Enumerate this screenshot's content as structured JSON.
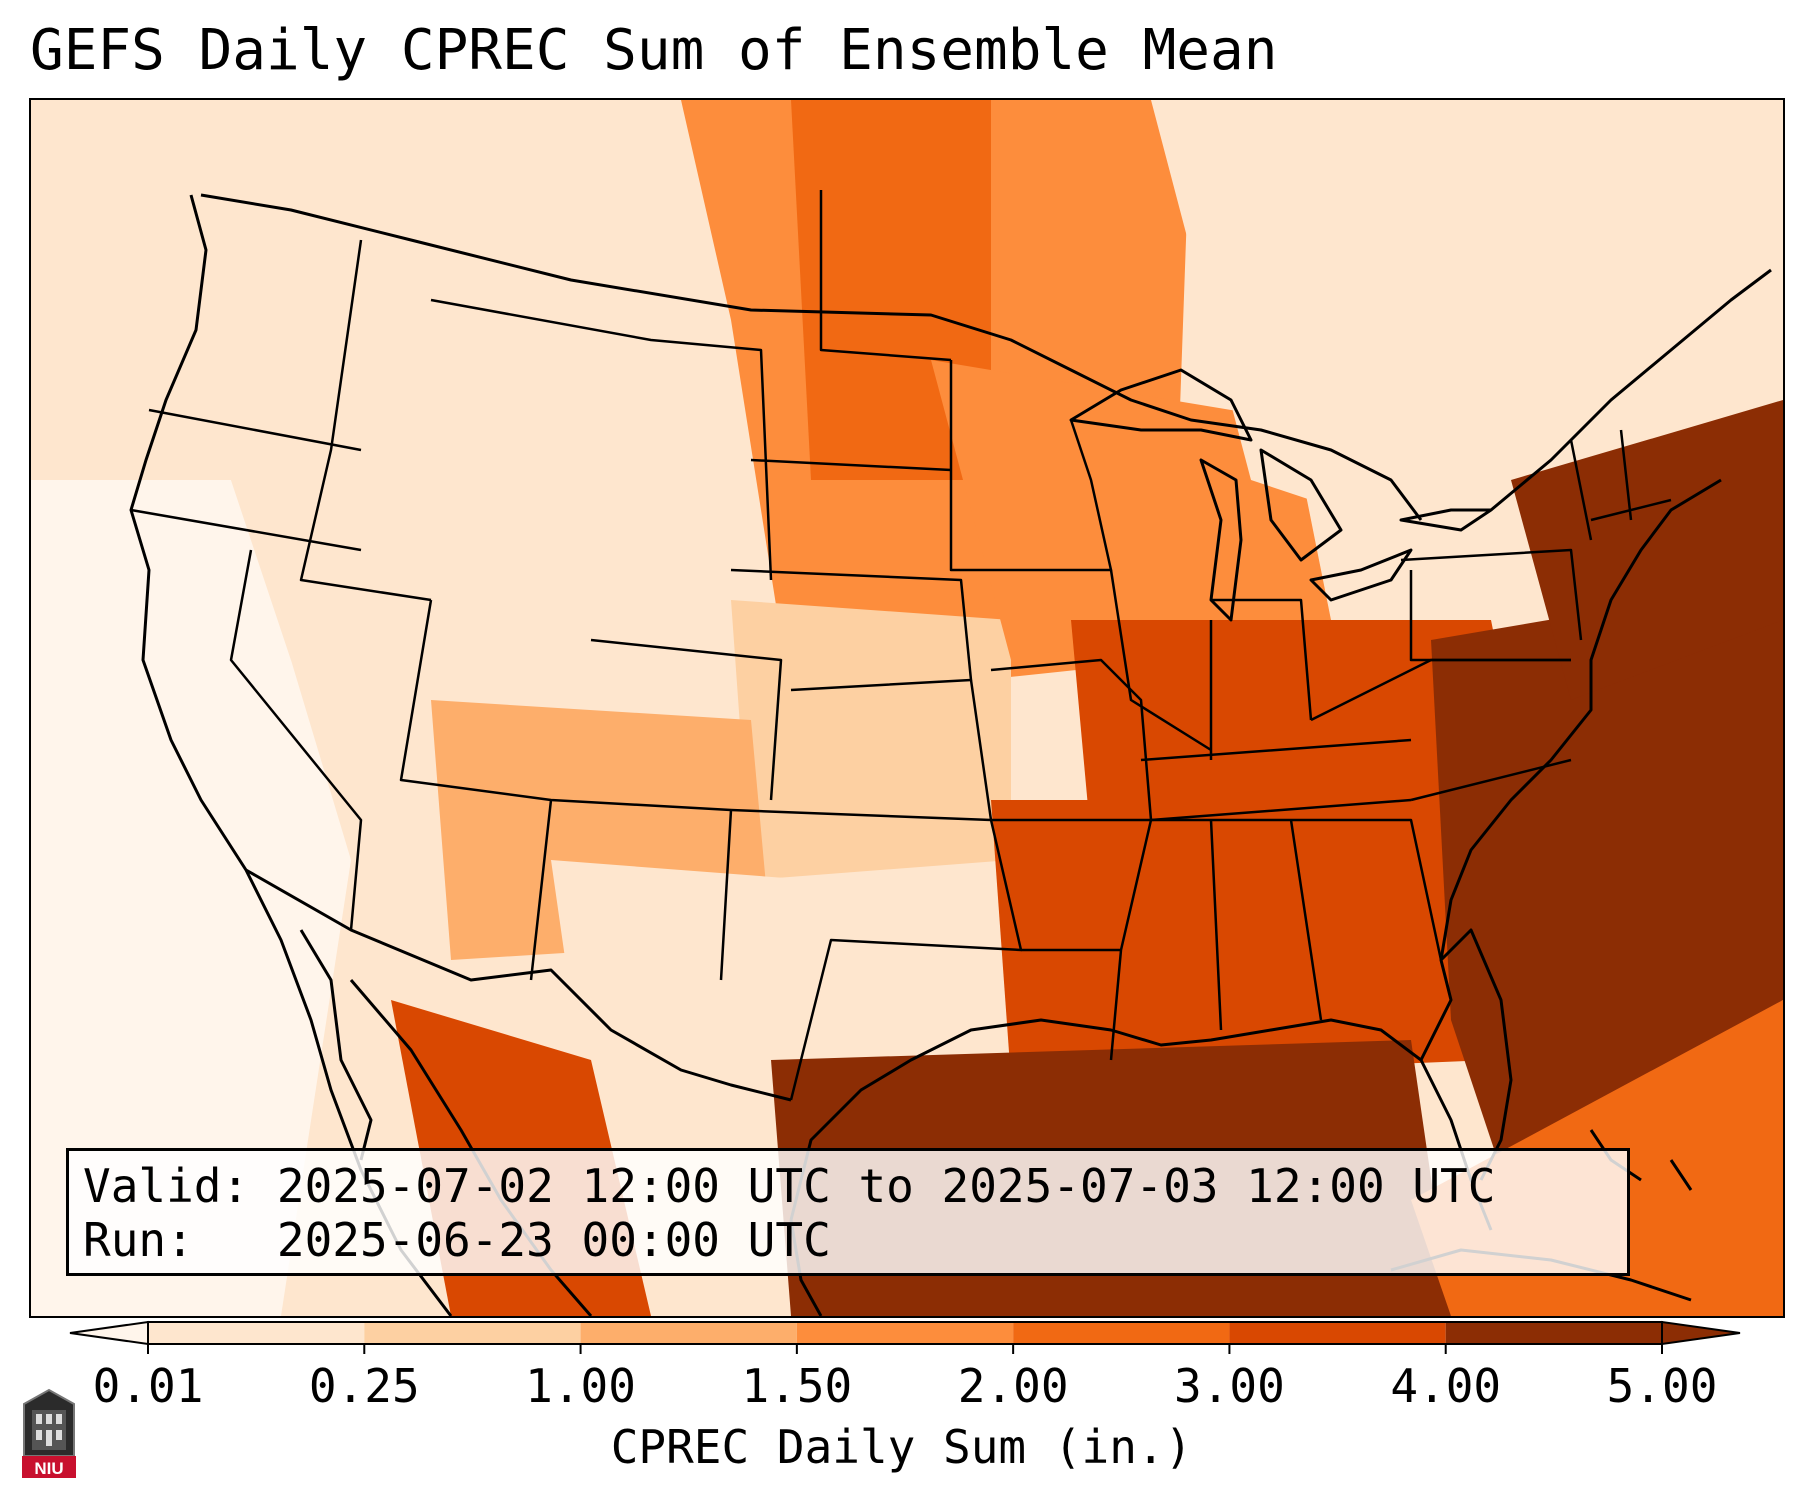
{
  "title": "GEFS Daily CPREC Sum of Ensemble Mean",
  "info": {
    "valid_label": "Valid:",
    "valid_value": "2025-07-02 12:00 UTC to 2025-07-03 12:00 UTC",
    "run_label": "Run:",
    "run_value": "2025-06-23 00:00 UTC"
  },
  "colorbar": {
    "label": "CPREC Daily Sum (in.)",
    "ticks": [
      "0.01",
      "0.25",
      "1.00",
      "1.50",
      "2.00",
      "3.00",
      "4.00",
      "5.00"
    ],
    "colors": [
      "#fff5eb",
      "#fee6ce",
      "#fdd0a2",
      "#fdae6b",
      "#fd8d3c",
      "#f16913",
      "#d94801",
      "#8c2d04"
    ],
    "under_color": "#fff5eb",
    "over_color": "#8c2d04"
  },
  "logo": {
    "text": "NIU",
    "color": "#c8102e"
  },
  "regions": {
    "pacific_northwest": "0.25",
    "california_coast": "0.01",
    "great_basin": "0.25",
    "northern_rockies": "0.25",
    "northern_plains": "2.00",
    "north_dakota_core": "3.00",
    "central_plains": "1.00",
    "southern_rockies": "1.50",
    "texas_west": "0.25",
    "mexico_sierra": "4.00",
    "midwest": "2.00",
    "ohio_valley": "4.00",
    "deep_south": "4.00",
    "gulf_of_mexico": "5.00",
    "southeast_atlantic": "5.00",
    "northeast": "0.25",
    "atlantic_offshore": "5.00",
    "caribbean": "3.00"
  }
}
